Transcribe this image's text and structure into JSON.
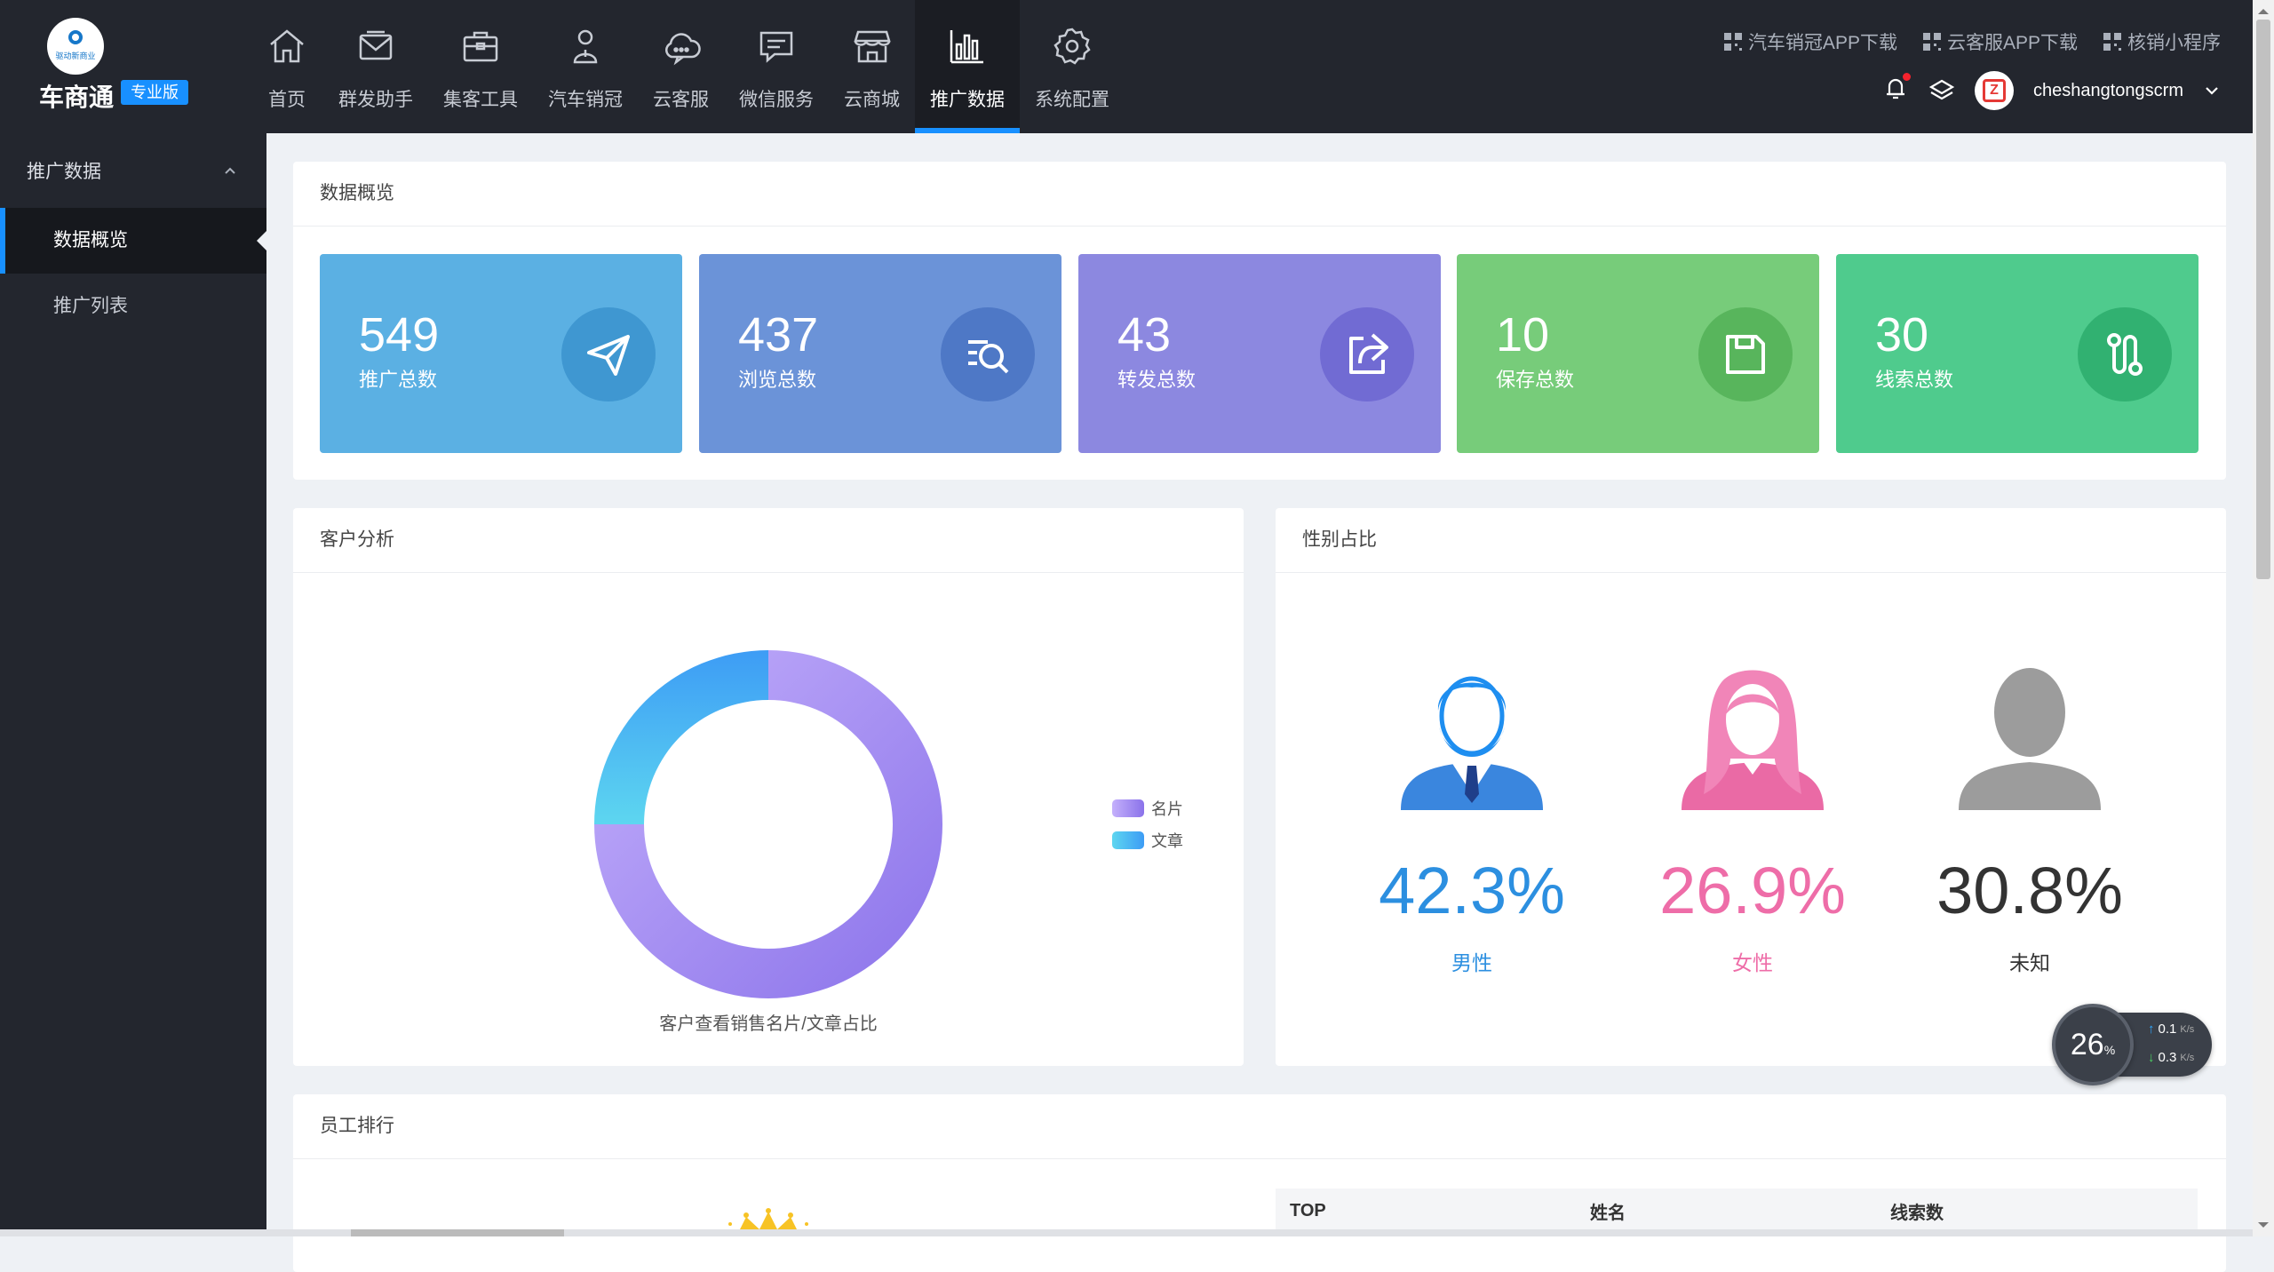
{
  "brand": {
    "logo_text": "驱动新商业",
    "name": "车商通",
    "badge": "专业版"
  },
  "nav": [
    {
      "label": "首页",
      "icon": "home-icon"
    },
    {
      "label": "群发助手",
      "icon": "mail-icon"
    },
    {
      "label": "集客工具",
      "icon": "briefcase-icon"
    },
    {
      "label": "汽车销冠",
      "icon": "person-icon"
    },
    {
      "label": "云客服",
      "icon": "cloud-chat-icon"
    },
    {
      "label": "微信服务",
      "icon": "message-icon"
    },
    {
      "label": "云商城",
      "icon": "store-icon"
    },
    {
      "label": "推广数据",
      "icon": "bar-chart-icon",
      "active": true
    },
    {
      "label": "系统配置",
      "icon": "gear-icon"
    }
  ],
  "top_links": [
    "汽车销冠APP下载",
    "云客服APP下载",
    "核销小程序"
  ],
  "user": {
    "name": "cheshangtongscrm",
    "avatar_letter": "Z"
  },
  "sidebar": {
    "group": "推广数据",
    "items": [
      {
        "label": "数据概览",
        "active": true
      },
      {
        "label": "推广列表"
      }
    ]
  },
  "overview": {
    "title": "数据概览",
    "stats": [
      {
        "value": "549",
        "label": "推广总数",
        "color": "#5bb0e3",
        "icon_bg": "#3f97d1",
        "icon": "paper-plane-icon"
      },
      {
        "value": "437",
        "label": "浏览总数",
        "color": "#6b93d8",
        "icon_bg": "#4e78c6",
        "icon": "search-list-icon"
      },
      {
        "value": "43",
        "label": "转发总数",
        "color": "#8c88e0",
        "icon_bg": "#716bd3",
        "icon": "share-icon"
      },
      {
        "value": "10",
        "label": "保存总数",
        "color": "#77cc7a",
        "icon_bg": "#58b55c",
        "icon": "save-icon"
      },
      {
        "value": "30",
        "label": "线索总数",
        "color": "#4fcb8d",
        "icon_bg": "#31b171",
        "icon": "route-icon"
      }
    ]
  },
  "customer_analysis": {
    "title": "客户分析",
    "caption": "客户查看销售名片/文章占比",
    "legend": [
      {
        "label": "名片",
        "color": "#a48cf0"
      },
      {
        "label": "文章",
        "color": "#4fb3f6"
      }
    ]
  },
  "chart_data": {
    "type": "pie",
    "donut": true,
    "series": [
      {
        "name": "名片",
        "value": 75,
        "color": "#a48cf0"
      },
      {
        "name": "文章",
        "value": 25,
        "color": "#4fb3f6"
      }
    ],
    "caption": "客户查看销售名片/文章占比",
    "legend_position": "right"
  },
  "gender": {
    "title": "性别占比",
    "items": [
      {
        "pct": "42.3%",
        "label": "男性",
        "color": "#2c8fe0",
        "icon": "male-avatar-icon"
      },
      {
        "pct": "26.9%",
        "label": "女性",
        "color": "#ee6da8",
        "icon": "female-avatar-icon"
      },
      {
        "pct": "30.8%",
        "label": "未知",
        "color": "#333333",
        "icon": "unknown-avatar-icon"
      }
    ]
  },
  "speed_widget": {
    "percent": "26",
    "unit": "%",
    "up": "0.1",
    "down": "0.3",
    "rate_unit": "K/s"
  },
  "ranking": {
    "title": "员工排行",
    "columns": [
      "TOP",
      "姓名",
      "线索数"
    ]
  }
}
